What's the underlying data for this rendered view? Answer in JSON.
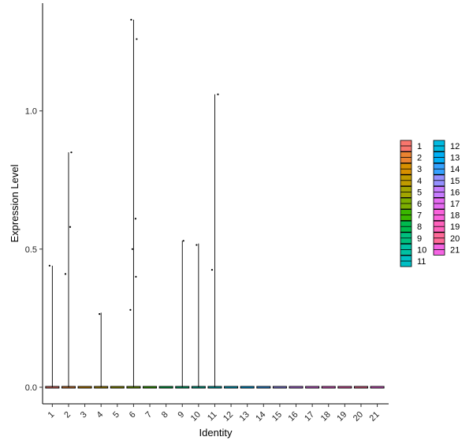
{
  "chart_data": {
    "type": "violin",
    "xlabel": "Identity",
    "ylabel": "Expression Level",
    "ylim": [
      -0.06,
      1.39
    ],
    "yticks": [
      0.0,
      0.5,
      1.0
    ],
    "ytick_labels": [
      "0.0",
      "0.5",
      "1.0"
    ],
    "categories": [
      "1",
      "2",
      "3",
      "4",
      "5",
      "6",
      "7",
      "8",
      "9",
      "10",
      "11",
      "12",
      "13",
      "14",
      "15",
      "16",
      "17",
      "18",
      "19",
      "20",
      "21"
    ],
    "colors": [
      "#F8766D",
      "#EA8331",
      "#D89000",
      "#C09B00",
      "#A3A500",
      "#7CAE00",
      "#39B600",
      "#00BB4E",
      "#00BF7D",
      "#00C1A3",
      "#00BFC4",
      "#00BAE0",
      "#00B0F6",
      "#35A2FF",
      "#9590FF",
      "#C77CFF",
      "#E76BF3",
      "#FA62DB",
      "#FF62BC",
      "#FF6A98",
      "#F564E3"
    ],
    "max_values": [
      0.44,
      0.85,
      0.0,
      0.27,
      0.0,
      1.33,
      0.0,
      0.0,
      0.53,
      0.52,
      1.06,
      0.0,
      0.0,
      0.0,
      0.0,
      0.0,
      0.0,
      0.0,
      0.0,
      0.0,
      0.0
    ],
    "points": [
      {
        "cat": 1,
        "y": 0.44
      },
      {
        "cat": 2,
        "y": 0.58
      },
      {
        "cat": 2,
        "y": 0.41
      },
      {
        "cat": 2,
        "y": 0.85
      },
      {
        "cat": 4,
        "y": 0.265
      },
      {
        "cat": 6,
        "y": 1.26
      },
      {
        "cat": 6,
        "y": 1.33
      },
      {
        "cat": 6,
        "y": 0.61
      },
      {
        "cat": 6,
        "y": 0.5
      },
      {
        "cat": 6,
        "y": 0.4
      },
      {
        "cat": 6,
        "y": 0.28
      },
      {
        "cat": 9,
        "y": 0.53
      },
      {
        "cat": 10,
        "y": 0.515
      },
      {
        "cat": 11,
        "y": 1.06
      },
      {
        "cat": 11,
        "y": 0.425
      }
    ],
    "legend": {
      "title": "",
      "placement": "right",
      "columns": [
        [
          "1",
          "2",
          "3",
          "4",
          "5",
          "6",
          "7",
          "8",
          "9",
          "10",
          "11"
        ],
        [
          "12",
          "13",
          "14",
          "15",
          "16",
          "17",
          "18",
          "19",
          "20",
          "21"
        ]
      ]
    },
    "grid": false
  }
}
